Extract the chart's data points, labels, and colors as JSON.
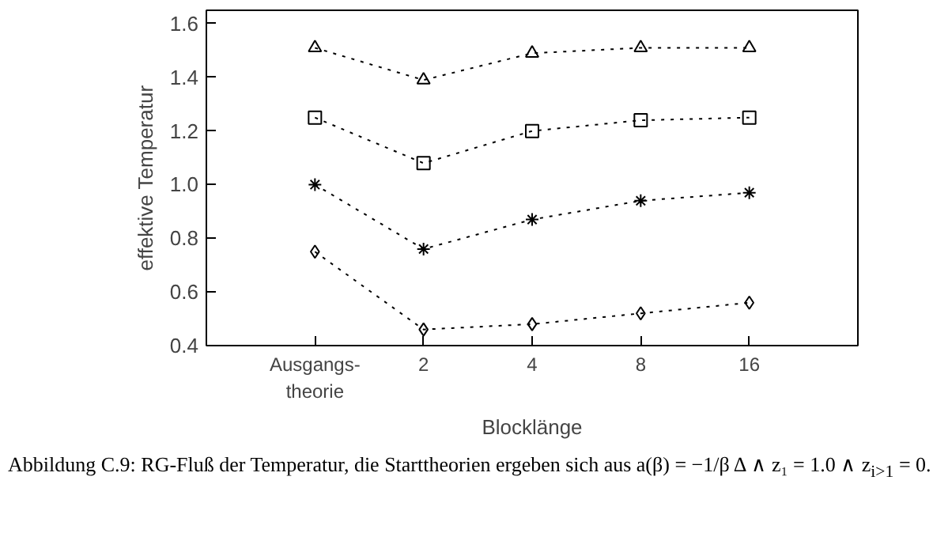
{
  "chart_data": {
    "type": "line",
    "xlabel": "Blocklänge",
    "ylabel": "effektive Temperatur",
    "categories": [
      "Ausgangs-\ntheorie",
      "2",
      "4",
      "8",
      "16"
    ],
    "series": [
      {
        "color": "#000000",
        "marker": "triangle",
        "values": [
          1.51,
          1.39,
          1.49,
          1.51,
          1.51
        ]
      },
      {
        "color": "#000000",
        "marker": "square",
        "values": [
          1.25,
          1.08,
          1.2,
          1.24,
          1.25
        ]
      },
      {
        "color": "#000000",
        "marker": "cross",
        "values": [
          1.0,
          0.76,
          0.87,
          0.94,
          0.97
        ]
      },
      {
        "color": "#000000",
        "marker": "diamond",
        "values": [
          0.75,
          0.46,
          0.48,
          0.52,
          0.56
        ]
      }
    ],
    "line_style": "dotted",
    "ylim": [
      0.4,
      1.65
    ],
    "yticks": [
      {
        "value": 0.4,
        "label": "0.4"
      },
      {
        "value": 0.6,
        "label": "0.6"
      },
      {
        "value": 0.8,
        "label": "0.8"
      },
      {
        "value": 1.0,
        "label": "1.0"
      },
      {
        "value": 1.2,
        "label": "1.2"
      },
      {
        "value": 1.4,
        "label": "1.4"
      },
      {
        "value": 1.6,
        "label": "1.6"
      }
    ],
    "grid": false,
    "annotations": [
      "Abbildung C.9: RG-Fluß der Temperatur, die Starttheorien ergeben sich aus a(β) = −1/β Δ ∧ z₁ = 1.0 ∧ z$_{i>1}$ = 0."
    ]
  }
}
